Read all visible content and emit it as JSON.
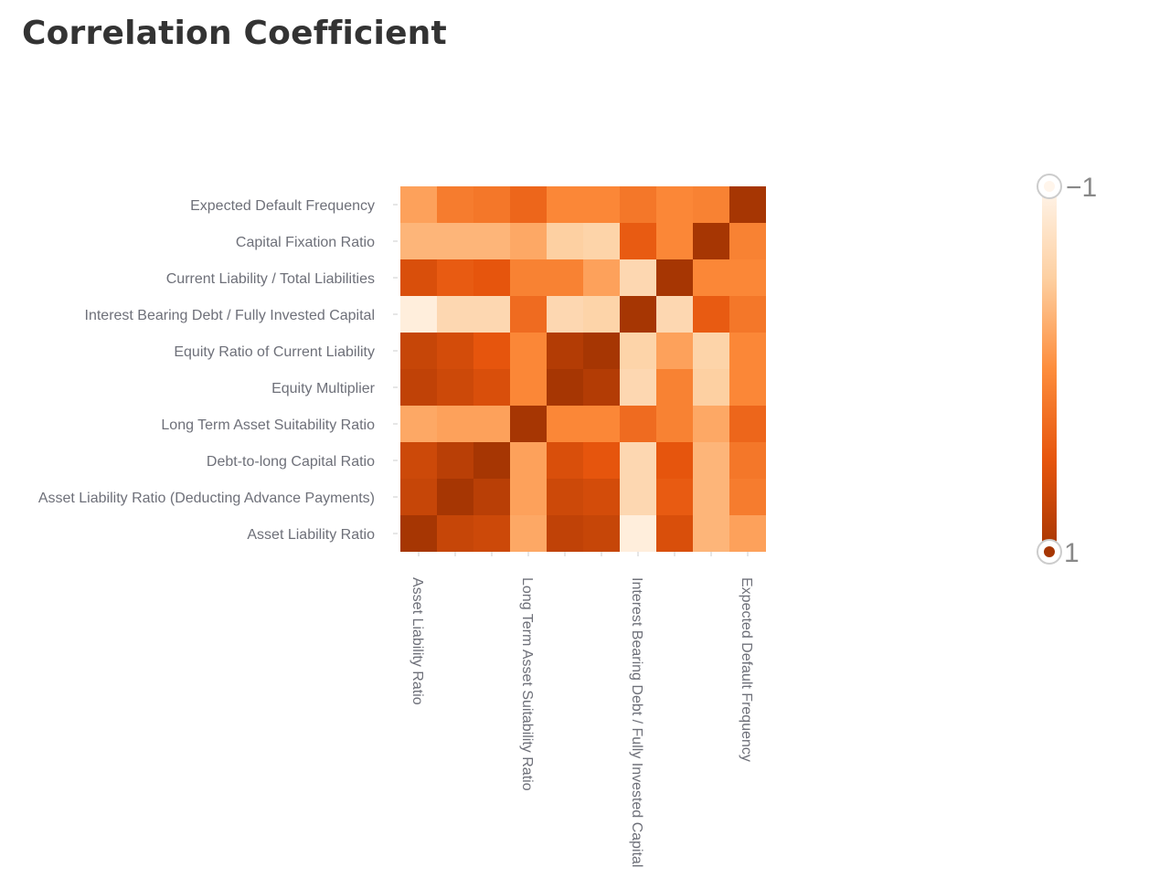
{
  "title": "Correlation Coefficient",
  "chart_data": {
    "type": "heatmap",
    "title": "Correlation Coefficient",
    "x_categories": [
      "Asset Liability Ratio",
      "Asset Liability Ratio (Deducting Advance Payments)",
      "Debt-to-long Capital Ratio",
      "Long Term Asset Suitability Ratio",
      "Equity Multiplier",
      "Equity Ratio of Current Liability",
      "Interest Bearing Debt / Fully Invested Capital",
      "Current Liability / Total Liabilities",
      "Capital Fixation Ratio",
      "Expected Default Frequency"
    ],
    "x_tick_labels_shown": [
      "Asset Liability Ratio",
      "Long Term Asset Suitability Ratio",
      "Interest Bearing Debt / Fully Invested Capital",
      "Expected Default Frequency"
    ],
    "y_categories": [
      "Asset Liability Ratio",
      "Asset Liability Ratio (Deducting Advance Payments)",
      "Debt-to-long Capital Ratio",
      "Long Term Asset Suitability Ratio",
      "Equity Multiplier",
      "Equity Ratio of Current Liability",
      "Interest Bearing Debt / Fully Invested Capital",
      "Current Liability / Total Liabilities",
      "Capital Fixation Ratio",
      "Expected Default Frequency"
    ],
    "matrix": [
      [
        1,
        0.75,
        0.7,
        -0.2,
        0.8,
        0.75,
        -0.9,
        0.6,
        -0.3,
        -0.15
      ],
      [
        0.75,
        1,
        0.85,
        -0.15,
        0.7,
        0.65,
        -0.6,
        0.45,
        -0.3,
        0.15
      ],
      [
        0.7,
        0.85,
        1,
        -0.15,
        0.6,
        0.5,
        -0.6,
        0.5,
        -0.3,
        0.2
      ],
      [
        -0.2,
        -0.15,
        -0.15,
        1,
        0.05,
        0.05,
        0.3,
        0.1,
        -0.2,
        0.35
      ],
      [
        0.8,
        0.7,
        0.6,
        0.05,
        1,
        0.9,
        -0.6,
        0.1,
        -0.5,
        0.05
      ],
      [
        0.75,
        0.65,
        0.5,
        0.05,
        0.9,
        1,
        -0.55,
        -0.15,
        -0.55,
        0.05
      ],
      [
        -0.9,
        -0.6,
        -0.6,
        0.3,
        -0.6,
        -0.55,
        1,
        -0.6,
        0.45,
        0.2
      ],
      [
        0.6,
        0.45,
        0.5,
        0.1,
        0.1,
        -0.15,
        -0.6,
        1,
        0.05,
        0.05
      ],
      [
        -0.3,
        -0.3,
        -0.3,
        -0.2,
        -0.5,
        -0.55,
        0.45,
        0.05,
        1,
        0.1
      ],
      [
        -0.15,
        0.15,
        0.2,
        0.35,
        0.05,
        0.05,
        0.2,
        0.05,
        0.1,
        1
      ]
    ],
    "value_range": [
      -1,
      1
    ],
    "color_scale": [
      "#fff5eb",
      "#fdd0a2",
      "#fd8d3c",
      "#e6550d",
      "#a63603"
    ],
    "legend": {
      "type": "continuous",
      "min_label": "−1",
      "max_label": "1",
      "placement": "right"
    },
    "grid": false
  }
}
